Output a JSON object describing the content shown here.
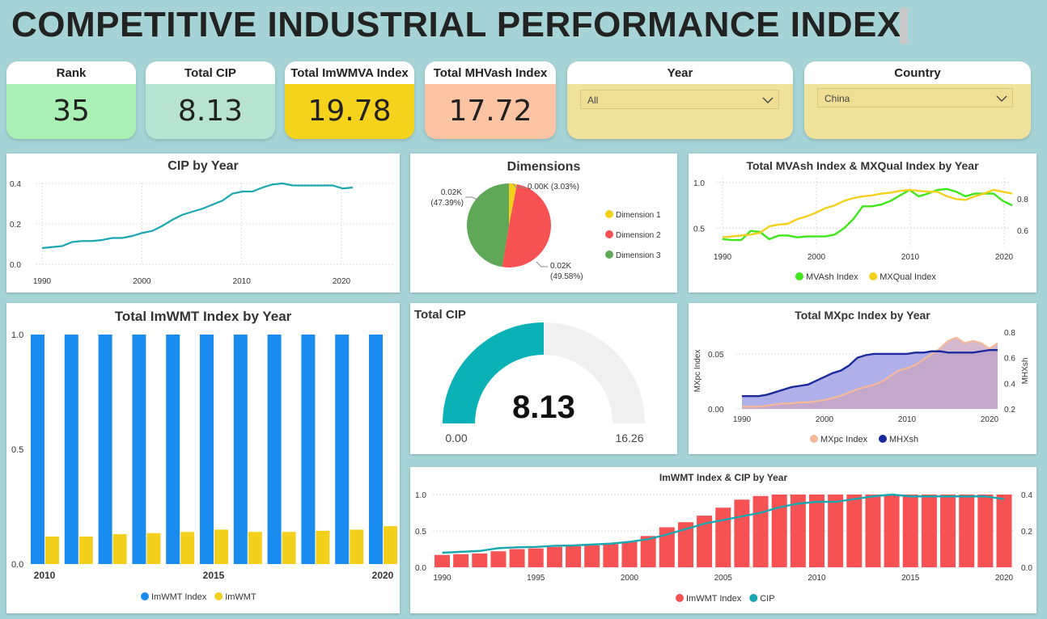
{
  "page_title": "COMPETITIVE INDUSTRIAL PERFORMANCE INDEX",
  "kpis": [
    {
      "label": "Rank",
      "value": "35",
      "color": "#a8f0b4"
    },
    {
      "label": "Total CIP",
      "value": "8.13",
      "color": "#b7e3d2"
    },
    {
      "label": "Total ImWMVA Index",
      "value": "19.78",
      "color": "#f5d21c"
    },
    {
      "label": "Total MHVash Index",
      "value": "17.72",
      "color": "#fdc4a4"
    }
  ],
  "slicers": {
    "year": {
      "label": "Year",
      "value": "All"
    },
    "country": {
      "label": "Country",
      "value": "China"
    }
  },
  "cip_by_year": {
    "title": "CIP by Year",
    "chart_data": {
      "type": "line",
      "x": [
        1990,
        1991,
        1992,
        1993,
        1994,
        1995,
        1996,
        1997,
        1998,
        1999,
        2000,
        2001,
        2002,
        2003,
        2004,
        2005,
        2006,
        2007,
        2008,
        2009,
        2010,
        2011,
        2012,
        2013,
        2014,
        2015,
        2016,
        2017,
        2018,
        2019,
        2020,
        2021
      ],
      "y": [
        0.08,
        0.085,
        0.09,
        0.11,
        0.115,
        0.115,
        0.12,
        0.13,
        0.13,
        0.14,
        0.155,
        0.165,
        0.19,
        0.22,
        0.245,
        0.26,
        0.275,
        0.295,
        0.315,
        0.35,
        0.36,
        0.36,
        0.38,
        0.395,
        0.4,
        0.39,
        0.39,
        0.39,
        0.39,
        0.39,
        0.375,
        0.38
      ],
      "xticks": [
        "1990",
        "2000",
        "2010",
        "2020"
      ],
      "yticks": [
        "0.0",
        "0.2",
        "0.4"
      ],
      "ylim": [
        0,
        0.42
      ],
      "color": "#1aa7b0"
    }
  },
  "dimensions": {
    "title": "Dimensions",
    "chart_data": {
      "type": "pie",
      "labels": [
        "Dimension 1",
        "Dimension 2",
        "Dimension 3"
      ],
      "values": [
        3.03,
        49.58,
        47.39
      ],
      "data_labels": [
        "0.00K (3.03%)",
        "0.02K (49.58%)",
        "0.02K (47.39%)"
      ],
      "colors": [
        "#f2d01c",
        "#f65253",
        "#5ea857"
      ]
    }
  },
  "mvash_mxqual": {
    "title": "Total MVAsh Index & MXQual Index by Year",
    "chart_data": {
      "type": "line",
      "x": [
        1990,
        1991,
        1992,
        1993,
        1994,
        1995,
        1996,
        1997,
        1998,
        1999,
        2000,
        2001,
        2002,
        2003,
        2004,
        2005,
        2006,
        2007,
        2008,
        2009,
        2010,
        2011,
        2012,
        2013,
        2014,
        2015,
        2016,
        2017,
        2018,
        2019,
        2020,
        2021
      ],
      "series": [
        {
          "name": "MVAsh Index",
          "color": "#3ee61a",
          "values": [
            0.38,
            0.37,
            0.37,
            0.47,
            0.46,
            0.38,
            0.42,
            0.42,
            0.4,
            0.41,
            0.41,
            0.41,
            0.43,
            0.5,
            0.6,
            0.74,
            0.74,
            0.76,
            0.8,
            0.86,
            0.92,
            0.85,
            0.88,
            0.92,
            0.93,
            0.9,
            0.85,
            0.88,
            0.88,
            0.88,
            0.8,
            0.75
          ]
        },
        {
          "name": "MXQual Index",
          "color": "#f2d01c",
          "values": [
            0.4,
            0.41,
            0.42,
            0.43,
            0.45,
            0.52,
            0.54,
            0.55,
            0.6,
            0.63,
            0.67,
            0.72,
            0.75,
            0.8,
            0.83,
            0.85,
            0.86,
            0.88,
            0.89,
            0.91,
            0.92,
            0.91,
            0.9,
            0.9,
            0.85,
            0.82,
            0.81,
            0.85,
            0.88,
            0.92,
            0.9,
            0.88
          ]
        }
      ],
      "xticks": [
        "1990",
        "2000",
        "2010",
        "2020"
      ],
      "yticks_left": [
        "0.5",
        "1.0"
      ],
      "yticks_right": [
        "0.6",
        "0.8"
      ]
    }
  },
  "imwmt_bar": {
    "title": "Total ImWMT Index by Year",
    "chart_data": {
      "type": "bar",
      "categories": [
        2010,
        2011,
        2012,
        2013,
        2014,
        2015,
        2016,
        2017,
        2018,
        2019,
        2020
      ],
      "series": [
        {
          "name": "ImWMT Index",
          "color": "#1a8cf0",
          "values": [
            1.0,
            1.0,
            1.0,
            1.0,
            1.0,
            1.0,
            1.0,
            1.0,
            1.0,
            1.0,
            1.0
          ]
        },
        {
          "name": "ImWMT",
          "color": "#f2d01c",
          "values": [
            0.12,
            0.12,
            0.13,
            0.135,
            0.14,
            0.15,
            0.14,
            0.14,
            0.145,
            0.15,
            0.165
          ]
        }
      ],
      "xticks": [
        "2010",
        "2015",
        "2020"
      ],
      "yticks": [
        "0.0",
        "0.5",
        "1.0"
      ],
      "ylim": [
        0,
        1.0
      ]
    }
  },
  "gauge": {
    "title": "Total CIP",
    "value_label": "8.13",
    "value": 8.13,
    "min_label": "0.00",
    "max_label": "16.26",
    "min": 0,
    "max": 16.26,
    "color": "#0ab1b7",
    "track_color": "#f0f0f0"
  },
  "mxpc": {
    "title": "Total MXpc Index by Year",
    "chart_data": {
      "type": "area",
      "x": [
        1990,
        1991,
        1992,
        1993,
        1994,
        1995,
        1996,
        1997,
        1998,
        1999,
        2000,
        2001,
        2002,
        2003,
        2004,
        2005,
        2006,
        2007,
        2008,
        2009,
        2010,
        2011,
        2012,
        2013,
        2014,
        2015,
        2016,
        2017,
        2018,
        2019,
        2020,
        2021
      ],
      "series": [
        {
          "name": "MXpc Index",
          "color": "#f5b99a",
          "axis": "left",
          "values": [
            0.002,
            0.002,
            0.002,
            0.003,
            0.004,
            0.005,
            0.005,
            0.006,
            0.006,
            0.007,
            0.008,
            0.01,
            0.012,
            0.015,
            0.018,
            0.02,
            0.022,
            0.025,
            0.03,
            0.035,
            0.037,
            0.04,
            0.045,
            0.05,
            0.055,
            0.062,
            0.065,
            0.06,
            0.062,
            0.06,
            0.055,
            0.06
          ]
        },
        {
          "name": "MHXsh",
          "color": "#1a2a9c",
          "axis": "right",
          "values": [
            0.3,
            0.3,
            0.3,
            0.31,
            0.33,
            0.35,
            0.37,
            0.38,
            0.39,
            0.42,
            0.45,
            0.48,
            0.5,
            0.54,
            0.6,
            0.62,
            0.63,
            0.63,
            0.63,
            0.63,
            0.63,
            0.64,
            0.64,
            0.65,
            0.65,
            0.64,
            0.64,
            0.64,
            0.64,
            0.65,
            0.66,
            0.66
          ]
        }
      ],
      "ylabel_left": "MXpc Index",
      "ylabel_right": "MHXsh",
      "xticks": [
        "1990",
        "2000",
        "2010",
        "2020"
      ],
      "yticks_left": [
        "0.00",
        "0.05"
      ],
      "yticks_right": [
        "0.2",
        "0.4",
        "0.6",
        "0.8"
      ]
    }
  },
  "imwmt_cip": {
    "title": "ImWMT Index & CIP by Year",
    "chart_data": {
      "type": "bar",
      "x": [
        1990,
        1991,
        1992,
        1993,
        1994,
        1995,
        1996,
        1997,
        1998,
        1999,
        2000,
        2001,
        2002,
        2003,
        2004,
        2005,
        2006,
        2007,
        2008,
        2009,
        2010,
        2011,
        2012,
        2013,
        2014,
        2015,
        2016,
        2017,
        2018,
        2019,
        2020
      ],
      "series": [
        {
          "name": "ImWMT Index",
          "color": "#f65253",
          "values": [
            0.17,
            0.18,
            0.19,
            0.22,
            0.25,
            0.26,
            0.28,
            0.29,
            0.3,
            0.32,
            0.35,
            0.43,
            0.55,
            0.62,
            0.71,
            0.82,
            0.93,
            0.98,
            1.0,
            1.0,
            1.0,
            1.0,
            1.0,
            1.0,
            1.0,
            1.0,
            1.0,
            1.0,
            1.0,
            1.0,
            1.0
          ]
        },
        {
          "name": "CIP",
          "color": "#1aa7b0",
          "values": [
            0.08,
            0.085,
            0.09,
            0.105,
            0.11,
            0.112,
            0.118,
            0.12,
            0.125,
            0.13,
            0.14,
            0.155,
            0.18,
            0.21,
            0.24,
            0.26,
            0.28,
            0.3,
            0.33,
            0.35,
            0.36,
            0.36,
            0.375,
            0.39,
            0.4,
            0.39,
            0.39,
            0.39,
            0.39,
            0.39,
            0.375
          ]
        }
      ],
      "xticks": [
        "1990",
        "1995",
        "2000",
        "2005",
        "2010",
        "2015",
        "2020"
      ],
      "yticks_left": [
        "0.0",
        "0.5",
        "1.0"
      ],
      "yticks_right": [
        "0.0",
        "0.2",
        "0.4"
      ]
    }
  }
}
